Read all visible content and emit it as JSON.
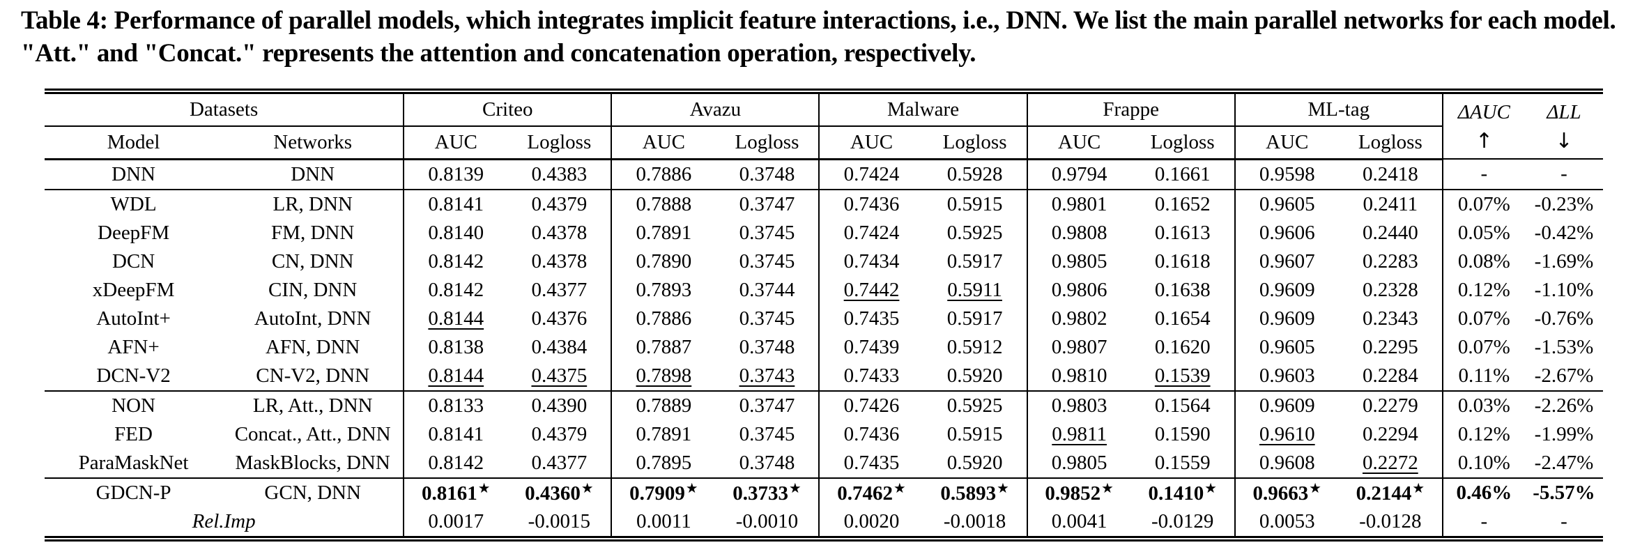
{
  "caption": "Table 4: Performance of parallel models, which integrates implicit feature interactions, i.e., DNN. We list the main parallel networks for each model. \"Att.\" and \"Concat.\" represents the attention and concatenation operation, respectively.",
  "table": {
    "star_glyph": "★",
    "col_groups": [
      {
        "label": "Datasets",
        "span": 2
      },
      {
        "label": "Criteo",
        "span": 2
      },
      {
        "label": "Avazu",
        "span": 2
      },
      {
        "label": "Malware",
        "span": 2
      },
      {
        "label": "Frappe",
        "span": 2
      },
      {
        "label": "ML-tag",
        "span": 2
      }
    ],
    "delta_cols": [
      {
        "label": "ΔAUC",
        "arrow": "↑"
      },
      {
        "label": "ΔLL",
        "arrow": "↓"
      }
    ],
    "sub_headers": [
      "Model",
      "Networks",
      "AUC",
      "Logloss",
      "AUC",
      "Logloss",
      "AUC",
      "Logloss",
      "AUC",
      "Logloss",
      "AUC",
      "Logloss"
    ],
    "rows": [
      {
        "model": "DNN",
        "networks": "DNN",
        "cells": [
          {
            "t": "0.8139"
          },
          {
            "t": "0.4383"
          },
          {
            "t": "0.7886"
          },
          {
            "t": "0.3748"
          },
          {
            "t": "0.7424"
          },
          {
            "t": "0.5928"
          },
          {
            "t": "0.9794"
          },
          {
            "t": "0.1661"
          },
          {
            "t": "0.9598"
          },
          {
            "t": "0.2418"
          },
          {
            "t": "-"
          },
          {
            "t": "-"
          }
        ]
      },
      {
        "model": "WDL",
        "networks": "LR, DNN",
        "section_start": true,
        "cells": [
          {
            "t": "0.8141"
          },
          {
            "t": "0.4379"
          },
          {
            "t": "0.7888"
          },
          {
            "t": "0.3747"
          },
          {
            "t": "0.7436"
          },
          {
            "t": "0.5915"
          },
          {
            "t": "0.9801"
          },
          {
            "t": "0.1652"
          },
          {
            "t": "0.9605"
          },
          {
            "t": "0.2411"
          },
          {
            "t": "0.07%"
          },
          {
            "t": "-0.23%"
          }
        ]
      },
      {
        "model": "DeepFM",
        "networks": "FM, DNN",
        "cells": [
          {
            "t": "0.8140"
          },
          {
            "t": "0.4378"
          },
          {
            "t": "0.7891"
          },
          {
            "t": "0.3745"
          },
          {
            "t": "0.7424"
          },
          {
            "t": "0.5925"
          },
          {
            "t": "0.9808"
          },
          {
            "t": "0.1613"
          },
          {
            "t": "0.9606"
          },
          {
            "t": "0.2440"
          },
          {
            "t": "0.05%"
          },
          {
            "t": "-0.42%"
          }
        ]
      },
      {
        "model": "DCN",
        "networks": "CN, DNN",
        "cells": [
          {
            "t": "0.8142"
          },
          {
            "t": "0.4378"
          },
          {
            "t": "0.7890"
          },
          {
            "t": "0.3745"
          },
          {
            "t": "0.7434"
          },
          {
            "t": "0.5917"
          },
          {
            "t": "0.9805"
          },
          {
            "t": "0.1618"
          },
          {
            "t": "0.9607"
          },
          {
            "t": "0.2283"
          },
          {
            "t": "0.08%"
          },
          {
            "t": "-1.69%"
          }
        ]
      },
      {
        "model": "xDeepFM",
        "networks": "CIN, DNN",
        "cells": [
          {
            "t": "0.8142"
          },
          {
            "t": "0.4377"
          },
          {
            "t": "0.7893"
          },
          {
            "t": "0.3744"
          },
          {
            "t": "0.7442",
            "u": true
          },
          {
            "t": "0.5911",
            "u": true
          },
          {
            "t": "0.9806"
          },
          {
            "t": "0.1638"
          },
          {
            "t": "0.9609"
          },
          {
            "t": "0.2328"
          },
          {
            "t": "0.12%"
          },
          {
            "t": "-1.10%"
          }
        ]
      },
      {
        "model": "AutoInt+",
        "networks": "AutoInt, DNN",
        "cells": [
          {
            "t": "0.8144",
            "u": true
          },
          {
            "t": "0.4376"
          },
          {
            "t": "0.7886"
          },
          {
            "t": "0.3745"
          },
          {
            "t": "0.7435"
          },
          {
            "t": "0.5917"
          },
          {
            "t": "0.9802"
          },
          {
            "t": "0.1654"
          },
          {
            "t": "0.9609"
          },
          {
            "t": "0.2343"
          },
          {
            "t": "0.07%"
          },
          {
            "t": "-0.76%"
          }
        ]
      },
      {
        "model": "AFN+",
        "networks": "AFN, DNN",
        "cells": [
          {
            "t": "0.8138"
          },
          {
            "t": "0.4384"
          },
          {
            "t": "0.7887"
          },
          {
            "t": "0.3748"
          },
          {
            "t": "0.7439"
          },
          {
            "t": "0.5912"
          },
          {
            "t": "0.9807"
          },
          {
            "t": "0.1620"
          },
          {
            "t": "0.9605"
          },
          {
            "t": "0.2295"
          },
          {
            "t": "0.07%"
          },
          {
            "t": "-1.53%"
          }
        ]
      },
      {
        "model": "DCN-V2",
        "networks": "CN-V2, DNN",
        "cells": [
          {
            "t": "0.8144",
            "u": true
          },
          {
            "t": "0.4375",
            "u": true
          },
          {
            "t": "0.7898",
            "u": true
          },
          {
            "t": "0.3743",
            "u": true
          },
          {
            "t": "0.7433"
          },
          {
            "t": "0.5920"
          },
          {
            "t": "0.9810"
          },
          {
            "t": "0.1539",
            "u": true
          },
          {
            "t": "0.9603"
          },
          {
            "t": "0.2284"
          },
          {
            "t": "0.11%"
          },
          {
            "t": "-2.67%"
          }
        ]
      },
      {
        "model": "NON",
        "networks": "LR, Att., DNN",
        "section_start": true,
        "cells": [
          {
            "t": "0.8133"
          },
          {
            "t": "0.4390"
          },
          {
            "t": "0.7889"
          },
          {
            "t": "0.3747"
          },
          {
            "t": "0.7426"
          },
          {
            "t": "0.5925"
          },
          {
            "t": "0.9803"
          },
          {
            "t": "0.1564"
          },
          {
            "t": "0.9609"
          },
          {
            "t": "0.2279"
          },
          {
            "t": "0.03%"
          },
          {
            "t": "-2.26%"
          }
        ]
      },
      {
        "model": "FED",
        "networks": "Concat., Att., DNN",
        "cells": [
          {
            "t": "0.8141"
          },
          {
            "t": "0.4379"
          },
          {
            "t": "0.7891"
          },
          {
            "t": "0.3745"
          },
          {
            "t": "0.7436"
          },
          {
            "t": "0.5915"
          },
          {
            "t": "0.9811",
            "u": true
          },
          {
            "t": "0.1590"
          },
          {
            "t": "0.9610",
            "u": true
          },
          {
            "t": "0.2294"
          },
          {
            "t": "0.12%"
          },
          {
            "t": "-1.99%"
          }
        ]
      },
      {
        "model": "ParaMaskNet",
        "networks": "MaskBlocks, DNN",
        "cells": [
          {
            "t": "0.8142"
          },
          {
            "t": "0.4377"
          },
          {
            "t": "0.7895"
          },
          {
            "t": "0.3748"
          },
          {
            "t": "0.7435"
          },
          {
            "t": "0.5920"
          },
          {
            "t": "0.9805"
          },
          {
            "t": "0.1559"
          },
          {
            "t": "0.9608"
          },
          {
            "t": "0.2272",
            "u": true
          },
          {
            "t": "0.10%"
          },
          {
            "t": "-2.47%"
          }
        ]
      },
      {
        "model": "GDCN-P",
        "networks": "GCN, DNN",
        "section_start": true,
        "cells": [
          {
            "t": "0.8161",
            "b": true,
            "star": true
          },
          {
            "t": "0.4360",
            "b": true,
            "star": true
          },
          {
            "t": "0.7909",
            "b": true,
            "star": true
          },
          {
            "t": "0.3733",
            "b": true,
            "star": true
          },
          {
            "t": "0.7462",
            "b": true,
            "star": true
          },
          {
            "t": "0.5893",
            "b": true,
            "star": true
          },
          {
            "t": "0.9852",
            "b": true,
            "star": true
          },
          {
            "t": "0.1410",
            "b": true,
            "star": true
          },
          {
            "t": "0.9663",
            "b": true,
            "star": true
          },
          {
            "t": "0.2144",
            "b": true,
            "star": true
          },
          {
            "t": "0.46%",
            "b": true
          },
          {
            "t": "-5.57%",
            "b": true
          }
        ]
      },
      {
        "label": "Rel.Imp",
        "span_label": true,
        "italic": true,
        "cells": [
          {
            "t": "0.0017"
          },
          {
            "t": "-0.0015"
          },
          {
            "t": "0.0011"
          },
          {
            "t": "-0.0010"
          },
          {
            "t": "0.0020"
          },
          {
            "t": "-0.0018"
          },
          {
            "t": "0.0041"
          },
          {
            "t": "-0.0129"
          },
          {
            "t": "0.0053"
          },
          {
            "t": "-0.0128"
          },
          {
            "t": "-"
          },
          {
            "t": "-"
          }
        ]
      }
    ]
  }
}
